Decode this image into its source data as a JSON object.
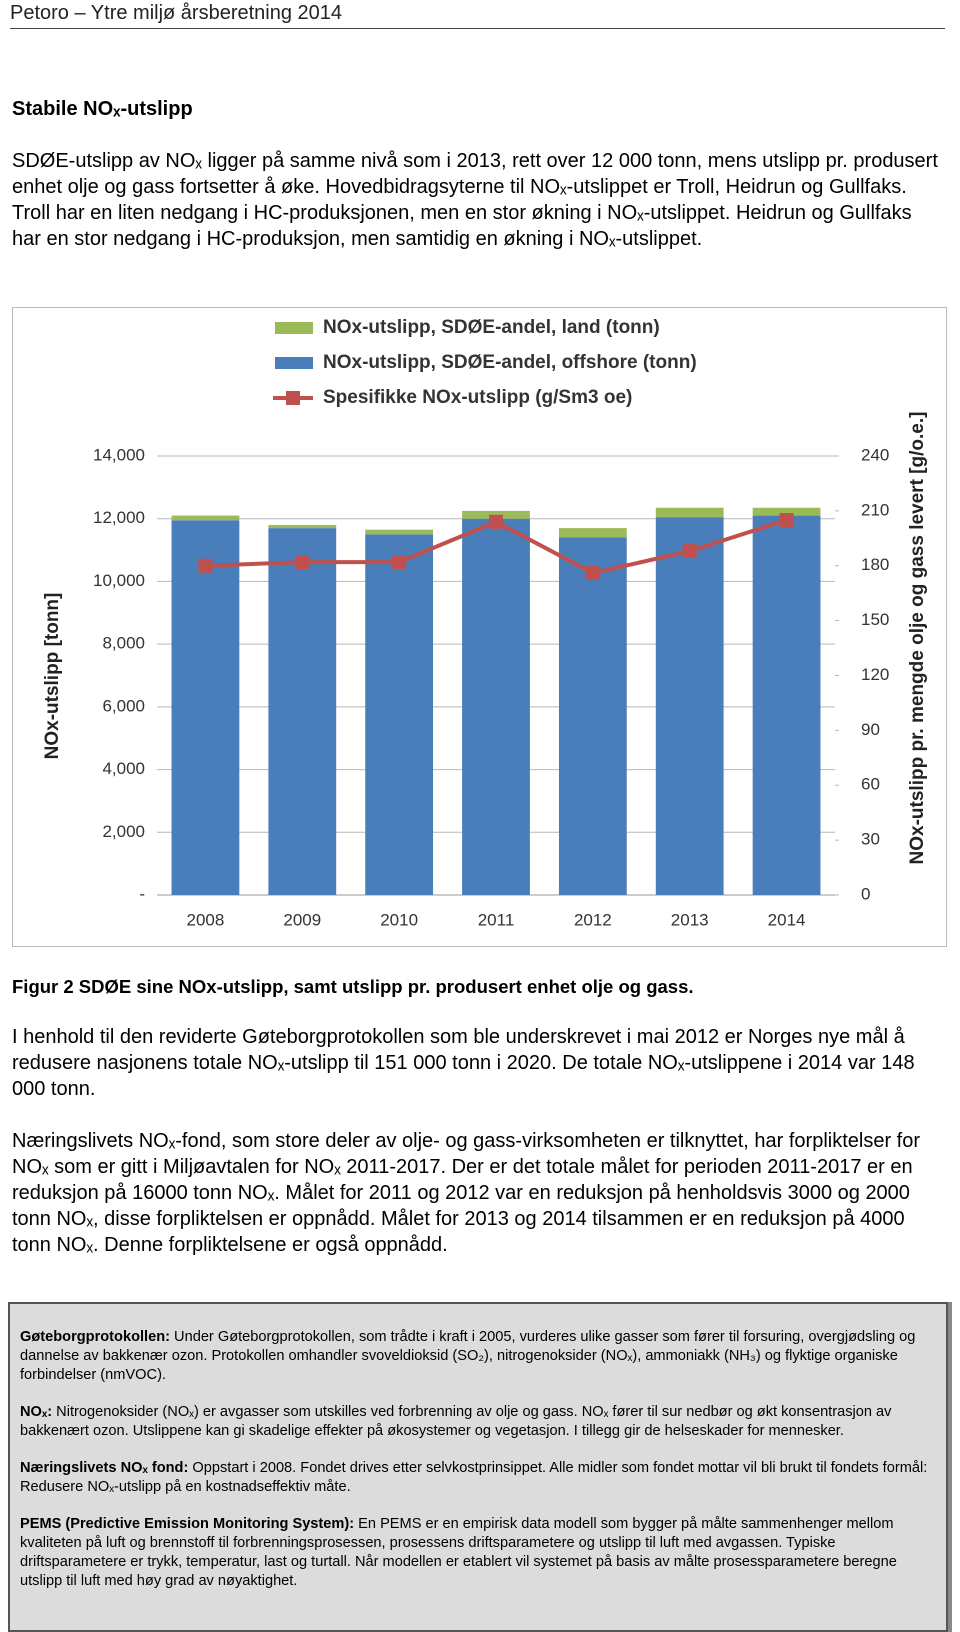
{
  "header": {
    "title": "Petoro – Ytre miljø årsberetning 2014"
  },
  "section": {
    "heading": "Stabile NOₓ-utslipp",
    "paragraph": "SDØE-utslipp av NOₓ ligger på samme nivå som i 2013, rett over 12 000 tonn, mens utslipp pr. produsert enhet olje og gass fortsetter å øke. Hovedbidragsyterne til NOₓ-utslippet er Troll, Heidrun og Gullfaks. Troll har en liten nedgang i HC-produksjonen, men en stor økning i NOₓ-utslippet. Heidrun og Gullfaks har en stor nedgang i HC-produksjon, men samtidig en økning i NOₓ-utslippet."
  },
  "chart_data": {
    "type": "bar",
    "stacked": true,
    "categories": [
      "2008",
      "2009",
      "2010",
      "2011",
      "2012",
      "2013",
      "2014"
    ],
    "series": [
      {
        "name": "NOx-utslipp, SDØE-andel, offshore (tonn)",
        "color": "#4a7ebb",
        "values": [
          11950,
          11700,
          11500,
          12000,
          11400,
          12050,
          12100
        ]
      },
      {
        "name": "NOx-utslipp, SDØE-andel, land (tonn)",
        "color": "#9bbb59",
        "values": [
          150,
          100,
          150,
          250,
          300,
          300,
          250
        ]
      },
      {
        "name": "Spesifikke NOx-utslipp (g/Sm3 oe)",
        "color": "#c0504d",
        "type": "line",
        "axis": "y2",
        "values": [
          180,
          182,
          182,
          204,
          176,
          188,
          205
        ]
      }
    ],
    "ylabel": "NOx-utslipp [tonn]",
    "y2label": "NOx-utslipp pr. mengde olje og gass levert [g/o.e.]",
    "ylim": [
      0,
      14000
    ],
    "yticks": [
      {
        "value": 0,
        "label": "-"
      },
      {
        "value": 2000,
        "label": "2,000"
      },
      {
        "value": 4000,
        "label": "4,000"
      },
      {
        "value": 6000,
        "label": "6,000"
      },
      {
        "value": 8000,
        "label": "8,000"
      },
      {
        "value": 10000,
        "label": "10,000"
      },
      {
        "value": 12000,
        "label": "12,000"
      },
      {
        "value": 14000,
        "label": "14,000"
      }
    ],
    "y2lim": [
      0,
      240
    ],
    "y2ticks": [
      0,
      30,
      60,
      90,
      120,
      150,
      180,
      210,
      240
    ],
    "grid": true,
    "legend": "top"
  },
  "figure_caption": "Figur 2 SDØE sine NOx-utslipp, samt utslipp pr. produsert enhet olje og gass.",
  "body_paragraphs": [
    "I henhold til den reviderte Gøteborgprotokollen som ble underskrevet i mai 2012 er Norges nye mål å redusere nasjonens totale NOₓ-utslipp til 151 000 tonn i 2020. De totale NOₓ-utslippene i 2014 var 148 000 tonn.",
    "Næringslivets NOₓ-fond, som store deler av olje- og gass-virksomheten er tilknyttet, har forpliktelser for NOₓ som er gitt i Miljøavtalen for NOₓ 2011-2017. Der er det totale målet for perioden 2011-2017 er en reduksjon på 16000 tonn NOₓ. Målet for 2011 og 2012 var en reduksjon på henholdsvis 3000 og 2000 tonn NOₓ, disse forpliktelsen er oppnådd. Målet for 2013 og 2014 tilsammen er en reduksjon på 4000 tonn NOₓ. Denne forpliktelsene er også oppnådd."
  ],
  "info_box": {
    "items": [
      {
        "term": "Gøteborgprotokollen:",
        "text": "Under Gøteborgprotokollen, som trådte i kraft i 2005, vurderes ulike gasser som fører til forsuring, overgjødsling og dannelse av bakkenær ozon. Protokollen omhandler svoveldioksid (SO₂), nitrogenoksider (NOₓ), ammoniakk (NH₃) og flyktige organiske forbindelser (nmVOC)."
      },
      {
        "term": "NOₓ:",
        "text": "Nitrogenoksider (NOₓ) er avgasser som utskilles ved forbrenning av olje og gass. NOₓ fører til sur nedbør og økt konsentrasjon av bakkenært ozon. Utslippene kan gi skadelige effekter på økosystemer og vegetasjon. I tillegg gir de helseskader for mennesker."
      },
      {
        "term": "Næringslivets NOₓ fond:",
        "text": "Oppstart i 2008. Fondet drives etter selvkostprinsippet. Alle midler som fondet mottar vil bli brukt til fondets formål: Redusere NOₓ-utslipp på en kostnadseffektiv måte."
      },
      {
        "term": "PEMS (Predictive Emission Monitoring System):",
        "text": "En PEMS er en empirisk data modell som bygger på målte sammenhenger mellom kvaliteten på luft og brennstoff til forbrenningsprosessen, prosessens driftsparametere og utslipp til luft med avgassen. Typiske driftsparametere er trykk, temperatur, last og turtall. Når modellen er etablert vil systemet på basis av målte prosessparametere beregne utslipp til luft med høy grad av nøyaktighet."
      }
    ]
  }
}
